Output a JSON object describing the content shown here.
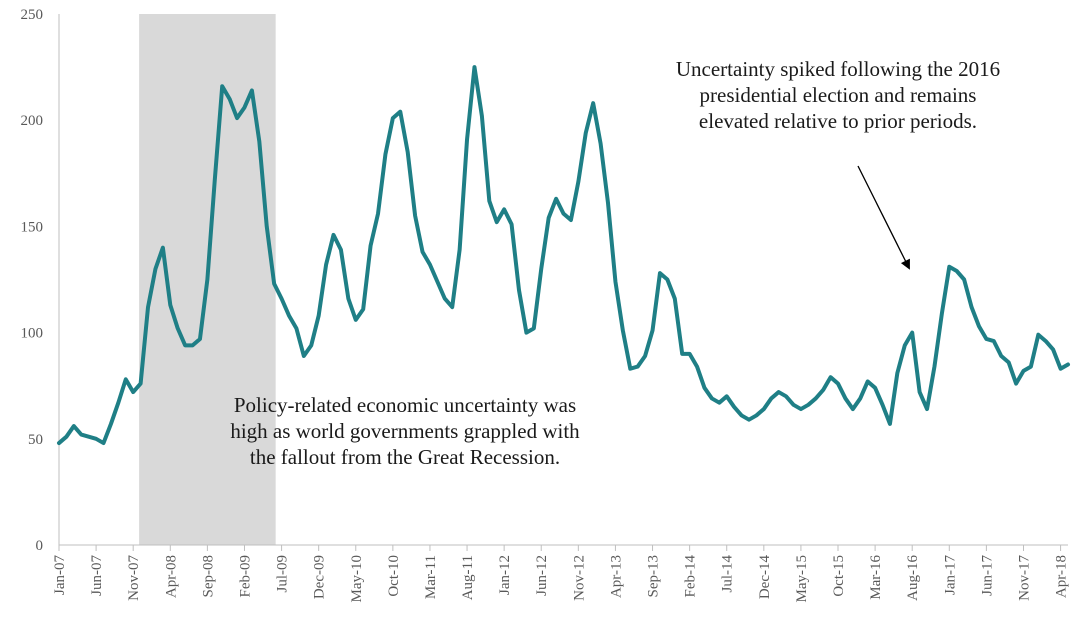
{
  "chart_data": {
    "type": "line",
    "title": "",
    "xlabel": "",
    "ylabel": "",
    "ylim": [
      0,
      250
    ],
    "yticks": [
      0,
      50,
      100,
      150,
      200,
      250
    ],
    "grid": false,
    "legend": "none",
    "x_start": "2007-01",
    "x_tick_labels": [
      "Jan-07",
      "Jun-07",
      "Nov-07",
      "Apr-08",
      "Sep-08",
      "Feb-09",
      "Jul-09",
      "Dec-09",
      "May-10",
      "Oct-10",
      "Mar-11",
      "Aug-11",
      "Jan-12",
      "Jun-12",
      "Nov-12",
      "Apr-13",
      "Sep-13",
      "Feb-14",
      "Jul-14",
      "Dec-14",
      "May-15",
      "Oct-15",
      "Mar-16",
      "Aug-16",
      "Jan-17",
      "Jun-17",
      "Nov-17",
      "Apr-18"
    ],
    "shaded_region": {
      "from": "2007-12",
      "to": "2009-06",
      "color": "#d9d9d9"
    },
    "series": [
      {
        "color": "#1f7f86",
        "x": [
          "2007-01",
          "2007-02",
          "2007-03",
          "2007-04",
          "2007-05",
          "2007-06",
          "2007-07",
          "2007-08",
          "2007-09",
          "2007-10",
          "2007-11",
          "2007-12",
          "2008-01",
          "2008-02",
          "2008-03",
          "2008-04",
          "2008-05",
          "2008-06",
          "2008-07",
          "2008-08",
          "2008-09",
          "2008-10",
          "2008-11",
          "2008-12",
          "2009-01",
          "2009-02",
          "2009-03",
          "2009-04",
          "2009-05",
          "2009-06",
          "2009-07",
          "2009-08",
          "2009-09",
          "2009-10",
          "2009-11",
          "2009-12",
          "2010-01",
          "2010-02",
          "2010-03",
          "2010-04",
          "2010-05",
          "2010-06",
          "2010-07",
          "2010-08",
          "2010-09",
          "2010-10",
          "2010-11",
          "2010-12",
          "2011-01",
          "2011-02",
          "2011-03",
          "2011-04",
          "2011-05",
          "2011-06",
          "2011-07",
          "2011-08",
          "2011-09",
          "2011-10",
          "2011-11",
          "2011-12",
          "2012-01",
          "2012-02",
          "2012-03",
          "2012-04",
          "2012-05",
          "2012-06",
          "2012-07",
          "2012-08",
          "2012-09",
          "2012-10",
          "2012-11",
          "2012-12",
          "2013-01",
          "2013-02",
          "2013-03",
          "2013-04",
          "2013-05",
          "2013-06",
          "2013-07",
          "2013-08",
          "2013-09",
          "2013-10",
          "2013-11",
          "2013-12",
          "2014-01",
          "2014-02",
          "2014-03",
          "2014-04",
          "2014-05",
          "2014-06",
          "2014-07",
          "2014-08",
          "2014-09",
          "2014-10",
          "2014-11",
          "2014-12",
          "2015-01",
          "2015-02",
          "2015-03",
          "2015-04",
          "2015-05",
          "2015-06",
          "2015-07",
          "2015-08",
          "2015-09",
          "2015-10",
          "2015-11",
          "2015-12",
          "2016-01",
          "2016-02",
          "2016-03",
          "2016-04",
          "2016-05",
          "2016-06",
          "2016-07",
          "2016-08",
          "2016-09",
          "2016-10",
          "2016-11",
          "2016-12",
          "2017-01",
          "2017-02",
          "2017-03",
          "2017-04",
          "2017-05",
          "2017-06",
          "2017-07",
          "2017-08",
          "2017-09",
          "2017-10",
          "2017-11",
          "2017-12",
          "2018-01",
          "2018-02",
          "2018-03",
          "2018-04",
          "2018-05"
        ],
        "values": [
          48,
          51,
          56,
          52,
          51,
          50,
          48,
          57,
          67,
          78,
          72,
          76,
          112,
          130,
          140,
          113,
          102,
          94,
          94,
          97,
          125,
          172,
          216,
          210,
          201,
          206,
          214,
          190,
          150,
          123,
          116,
          108,
          102,
          89,
          94,
          108,
          132,
          146,
          139,
          116,
          106,
          111,
          141,
          156,
          184,
          201,
          204,
          185,
          155,
          138,
          132,
          124,
          116,
          112,
          139,
          191,
          225,
          202,
          162,
          152,
          158,
          151,
          120,
          100,
          102,
          130,
          154,
          163,
          156,
          153,
          171,
          194,
          208,
          189,
          161,
          124,
          101,
          83,
          84,
          89,
          101,
          128,
          125,
          116,
          90,
          90,
          84,
          74,
          69,
          67,
          70,
          65,
          61,
          59,
          61,
          64,
          69,
          72,
          70,
          66,
          64,
          66,
          69,
          73,
          79,
          76,
          69,
          64,
          69,
          77,
          74,
          66,
          57,
          81,
          94,
          100,
          72,
          64,
          84,
          109,
          131,
          129,
          125,
          112,
          103,
          97,
          96,
          89,
          86,
          76,
          82,
          84,
          99,
          96,
          92,
          83,
          85
        ]
      }
    ],
    "annotations": [
      {
        "lines": [
          "Policy-related economic uncertainty was",
          "high as world governments grappled with",
          "the fallout from the Great Recession."
        ]
      },
      {
        "lines": [
          "Uncertainty spiked following the 2016",
          "presidential election and remains",
          "elevated relative to prior periods."
        ]
      }
    ]
  }
}
